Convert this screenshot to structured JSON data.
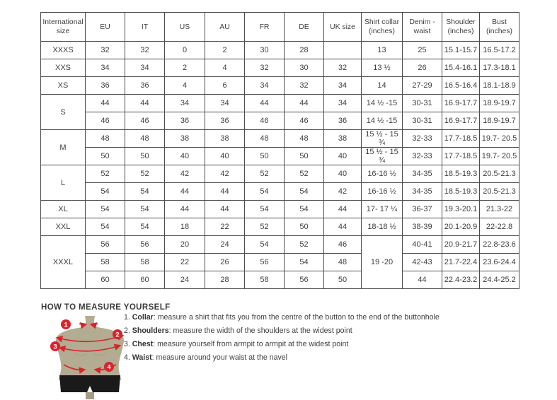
{
  "table": {
    "headers": [
      "International size",
      "EU",
      "IT",
      "US",
      "AU",
      "FR",
      "DE",
      "UK size",
      "Shirt collar (inches)",
      "Denim - waist",
      "Shoulder (inches)",
      "Bust (inches)"
    ],
    "rows": [
      {
        "cells": [
          {
            "t": "XXXS"
          },
          {
            "t": "32"
          },
          {
            "t": "32"
          },
          {
            "t": "0"
          },
          {
            "t": "2"
          },
          {
            "t": "30"
          },
          {
            "t": "28"
          },
          {
            "t": ""
          },
          {
            "t": "13"
          },
          {
            "t": "25"
          },
          {
            "t": "15.1-15.7"
          },
          {
            "t": "16.5-17.2"
          }
        ]
      },
      {
        "cells": [
          {
            "t": "XXS"
          },
          {
            "t": "34"
          },
          {
            "t": "34"
          },
          {
            "t": "2"
          },
          {
            "t": "4"
          },
          {
            "t": "32"
          },
          {
            "t": "30"
          },
          {
            "t": "32"
          },
          {
            "t": "13 ½"
          },
          {
            "t": "26"
          },
          {
            "t": "15.4-16.1"
          },
          {
            "t": "17.3-18.1"
          }
        ]
      },
      {
        "cells": [
          {
            "t": "XS"
          },
          {
            "t": "36"
          },
          {
            "t": "36"
          },
          {
            "t": "4"
          },
          {
            "t": "6"
          },
          {
            "t": "34"
          },
          {
            "t": "32"
          },
          {
            "t": "34"
          },
          {
            "t": "14"
          },
          {
            "t": "27-29"
          },
          {
            "t": "16.5-16.4"
          },
          {
            "t": "18.1-18.9"
          }
        ]
      },
      {
        "cells": [
          {
            "t": "S",
            "rs": 2
          },
          {
            "t": "44"
          },
          {
            "t": "44"
          },
          {
            "t": "34"
          },
          {
            "t": "34"
          },
          {
            "t": "44"
          },
          {
            "t": "44"
          },
          {
            "t": "34"
          },
          {
            "t": "14 ½ -15"
          },
          {
            "t": "30-31"
          },
          {
            "t": "16.9-17.7"
          },
          {
            "t": "18.9-19.7"
          }
        ]
      },
      {
        "cells": [
          {
            "t": "46"
          },
          {
            "t": "46"
          },
          {
            "t": "36"
          },
          {
            "t": "36"
          },
          {
            "t": "46"
          },
          {
            "t": "46"
          },
          {
            "t": "36"
          },
          {
            "t": "14 ½ -15"
          },
          {
            "t": "30-31"
          },
          {
            "t": "16.9-17.7"
          },
          {
            "t": "18.9-19.7"
          }
        ]
      },
      {
        "cells": [
          {
            "t": "M",
            "rs": 2
          },
          {
            "t": "48"
          },
          {
            "t": "48"
          },
          {
            "t": "38"
          },
          {
            "t": "38"
          },
          {
            "t": "48"
          },
          {
            "t": "48"
          },
          {
            "t": "38"
          },
          {
            "t": "15 ½ - 15 ¾"
          },
          {
            "t": "32-33"
          },
          {
            "t": "17.7-18.5"
          },
          {
            "t": "19.7- 20.5"
          }
        ]
      },
      {
        "cells": [
          {
            "t": "50"
          },
          {
            "t": "50"
          },
          {
            "t": "40"
          },
          {
            "t": "40"
          },
          {
            "t": "50"
          },
          {
            "t": "50"
          },
          {
            "t": "40"
          },
          {
            "t": "15 ½ - 15 ¾"
          },
          {
            "t": "32-33"
          },
          {
            "t": "17.7-18.5"
          },
          {
            "t": "19.7- 20.5"
          }
        ]
      },
      {
        "cells": [
          {
            "t": "L",
            "rs": 2
          },
          {
            "t": "52"
          },
          {
            "t": "52"
          },
          {
            "t": "42"
          },
          {
            "t": "42"
          },
          {
            "t": "52"
          },
          {
            "t": "52"
          },
          {
            "t": "40"
          },
          {
            "t": "16-16 ½"
          },
          {
            "t": "34-35"
          },
          {
            "t": "18.5-19.3"
          },
          {
            "t": "20.5-21.3"
          }
        ]
      },
      {
        "cells": [
          {
            "t": "54"
          },
          {
            "t": "54"
          },
          {
            "t": "44"
          },
          {
            "t": "44"
          },
          {
            "t": "54"
          },
          {
            "t": "54"
          },
          {
            "t": "42"
          },
          {
            "t": "16-16 ½"
          },
          {
            "t": "34-35"
          },
          {
            "t": "18.5-19.3"
          },
          {
            "t": "20.5-21.3"
          }
        ]
      },
      {
        "cells": [
          {
            "t": "XL"
          },
          {
            "t": "54"
          },
          {
            "t": "54"
          },
          {
            "t": "44"
          },
          {
            "t": "44"
          },
          {
            "t": "54"
          },
          {
            "t": "54"
          },
          {
            "t": "44"
          },
          {
            "t": "17- 17 ¼"
          },
          {
            "t": "36-37"
          },
          {
            "t": "19.3-20.1"
          },
          {
            "t": "21.3-22"
          }
        ]
      },
      {
        "cells": [
          {
            "t": "XXL"
          },
          {
            "t": "54"
          },
          {
            "t": "54"
          },
          {
            "t": "18"
          },
          {
            "t": "22"
          },
          {
            "t": "52"
          },
          {
            "t": "50"
          },
          {
            "t": "44"
          },
          {
            "t": "18-18 ½"
          },
          {
            "t": "38-39"
          },
          {
            "t": "20.1-20.9"
          },
          {
            "t": "22-22.8"
          }
        ]
      },
      {
        "cells": [
          {
            "t": "XXXL",
            "rs": 3
          },
          {
            "t": "56"
          },
          {
            "t": "56"
          },
          {
            "t": "20"
          },
          {
            "t": "24"
          },
          {
            "t": "54"
          },
          {
            "t": "52"
          },
          {
            "t": "46"
          },
          {
            "t": "19 -20",
            "rs": 3
          },
          {
            "t": "40-41"
          },
          {
            "t": "20.9-21.7"
          },
          {
            "t": "22.8-23.6"
          }
        ]
      },
      {
        "cells": [
          {
            "t": "58"
          },
          {
            "t": "58"
          },
          {
            "t": "22"
          },
          {
            "t": "26"
          },
          {
            "t": "56"
          },
          {
            "t": "54"
          },
          {
            "t": "48"
          },
          {
            "t": "42-43"
          },
          {
            "t": "21.7-22.4"
          },
          {
            "t": "23.6-24.4"
          }
        ]
      },
      {
        "cells": [
          {
            "t": "60"
          },
          {
            "t": "60"
          },
          {
            "t": "24"
          },
          {
            "t": "28"
          },
          {
            "t": "58"
          },
          {
            "t": "56"
          },
          {
            "t": "50"
          },
          {
            "t": "44"
          },
          {
            "t": "22.4-23.2"
          },
          {
            "t": "24.4-25.2"
          }
        ]
      }
    ]
  },
  "measure": {
    "title": "HOW TO MEASURE YOURSELF",
    "badges": [
      "1",
      "2",
      "3",
      "4"
    ],
    "steps": [
      {
        "num": "1.",
        "label": "Collar",
        "rest": ": measure a shirt that fits you from the centre of the button to the end of the buttonhole"
      },
      {
        "num": "2.",
        "label": "Shoulders",
        "rest": ": measure the width of the shoulders at the widest point"
      },
      {
        "num": "3.",
        "label": "Chest",
        "rest": ": measure yourself from armpit to armpit at the widest point"
      },
      {
        "num": "4.",
        "label": "Waist",
        "rest": ": measure around your waist at the navel"
      }
    ]
  },
  "colors": {
    "accent_red": "#d8232d",
    "mannequin_tan": "#b3ab92",
    "shorts_black": "#1a1a1a",
    "border_gray": "#4c4c4c"
  }
}
